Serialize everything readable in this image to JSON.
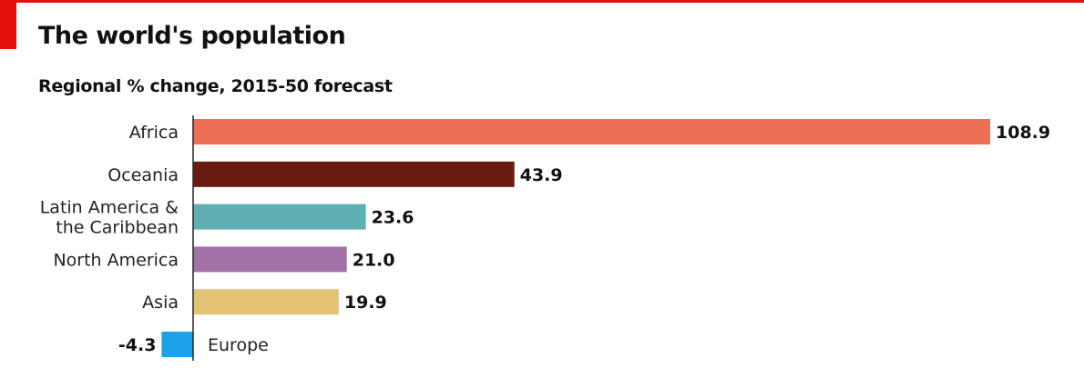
{
  "colors": {
    "accent": "#e3120b"
  },
  "chart_data": {
    "type": "bar",
    "orientation": "horizontal",
    "title": "The world's population",
    "subtitle": "Regional % change, 2015-50 forecast",
    "xlabel": "",
    "ylabel": "",
    "xlim": [
      -4.3,
      108.9
    ],
    "grid": false,
    "categories": [
      "Africa",
      "Oceania",
      "Latin America & the Caribbean",
      "North America",
      "Asia",
      "Europe"
    ],
    "label_lines": [
      [
        "Africa"
      ],
      [
        "Oceania"
      ],
      [
        "Latin America &",
        "the Caribbean"
      ],
      [
        "North America"
      ],
      [
        "Asia"
      ],
      [
        "Europe"
      ]
    ],
    "values": [
      108.9,
      43.9,
      23.6,
      21.0,
      19.9,
      -4.3
    ],
    "value_labels": [
      "108.9",
      "43.9",
      "23.6",
      "21.0",
      "19.9",
      "-4.3"
    ],
    "bar_colors": [
      "#ef6e56",
      "#6b1c11",
      "#5fb0b2",
      "#a271a8",
      "#e2c474",
      "#1da1e9"
    ]
  }
}
